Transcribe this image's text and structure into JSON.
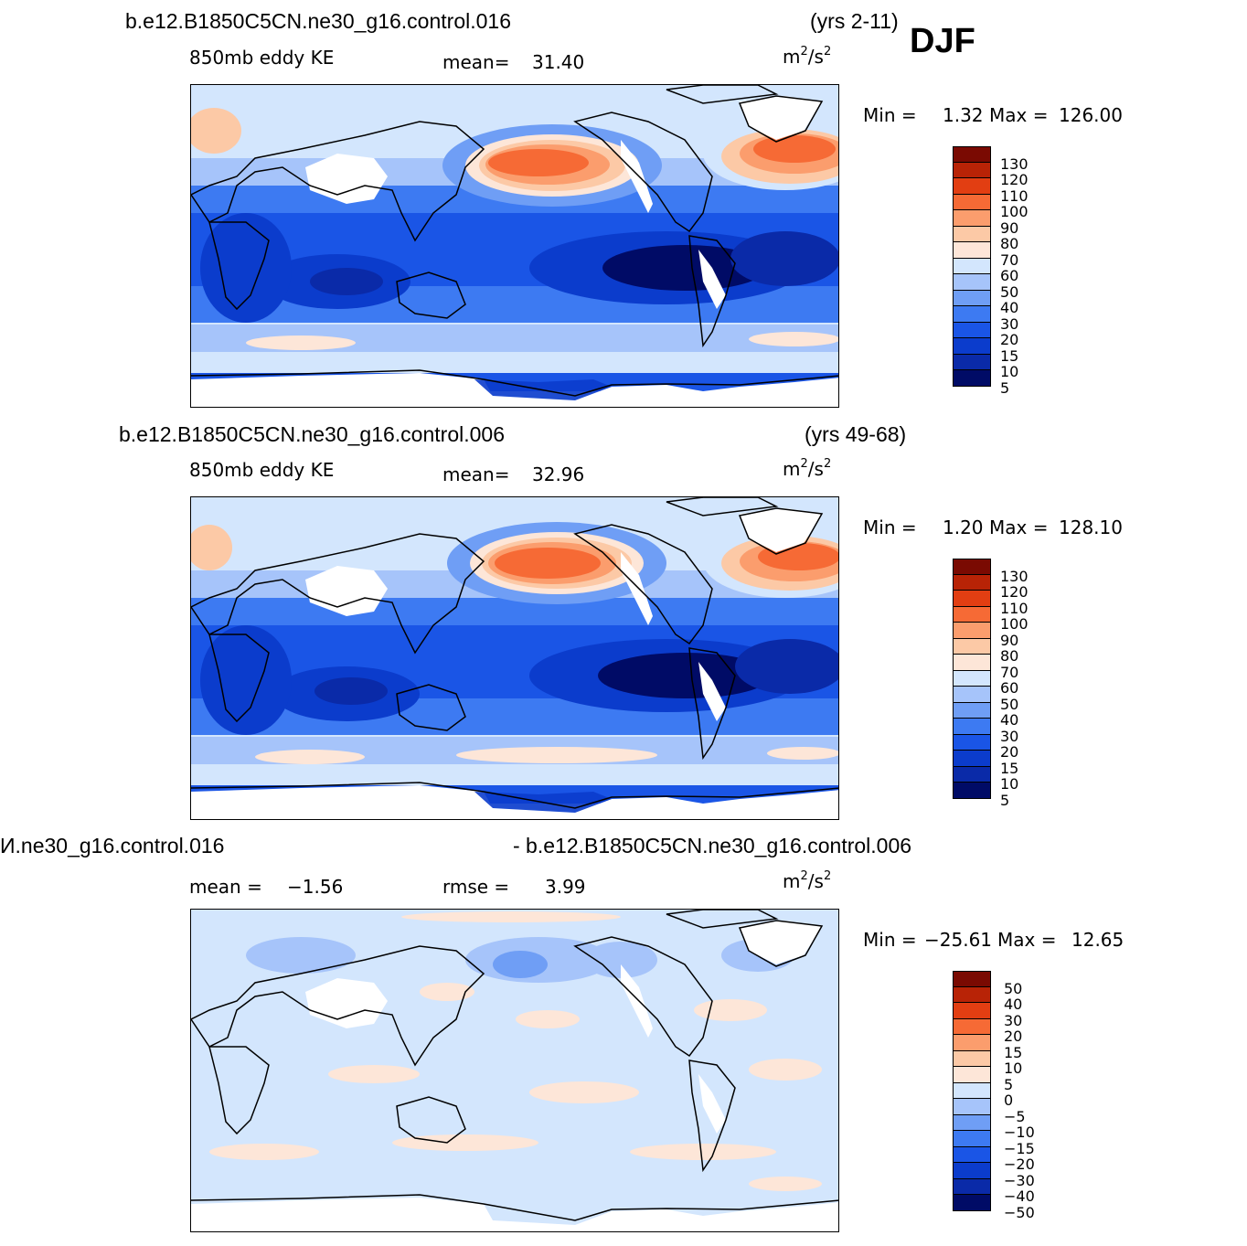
{
  "season": "DJF",
  "units_base": "m",
  "units_exp1": "2",
  "units_sep": "/s",
  "units_exp2": "2",
  "colors": {
    "scale": [
      "#000b66",
      "#0a2aa8",
      "#0b3ccc",
      "#1a55e6",
      "#3d7af2",
      "#6f9ef5",
      "#a6c4fa",
      "#d3e6fd",
      "#fde6d8",
      "#fcc9a6",
      "#fb9d6d",
      "#f66a35",
      "#e23e12",
      "#b82306",
      "#7a0a02"
    ],
    "land_outline": "#000000",
    "missing": "#ffffff"
  },
  "chart_data": [
    {
      "type": "heatmap",
      "case": "b.e12.B1850C5CN.ne30_g16.control.016",
      "years": "(yrs 2-11)",
      "variable": "850mb  eddy  KE",
      "stat1_label": "mean=",
      "stat1_value": "31.40",
      "min_label": "Min  =",
      "min_value": "1.32",
      "max_label": "Max  =",
      "max_value": "126.00",
      "levels": [
        "130",
        "120",
        "110",
        "100",
        "90",
        "80",
        "70",
        "60",
        "50",
        "40",
        "30",
        "20",
        "15",
        "10",
        "5"
      ]
    },
    {
      "type": "heatmap",
      "case": "b.e12.B1850C5CN.ne30_g16.control.006",
      "years": "(yrs 49-68)",
      "variable": "850mb  eddy  KE",
      "stat1_label": "mean=",
      "stat1_value": "32.96",
      "min_label": "Min  =",
      "min_value": "1.20",
      "max_label": "Max  =",
      "max_value": "128.10",
      "levels": [
        "130",
        "120",
        "110",
        "100",
        "90",
        "80",
        "70",
        "60",
        "50",
        "40",
        "30",
        "20",
        "15",
        "10",
        "5"
      ]
    },
    {
      "type": "heatmap",
      "case_left": "И.ne30_g16.control.016",
      "case_right": "- b.e12.B1850C5CN.ne30_g16.control.006",
      "stat1_label": "mean  =",
      "stat1_value": "−1.56",
      "stat2_label": "rmse  =",
      "stat2_value": "3.99",
      "min_label": "Min  =",
      "min_value": "−25.61",
      "max_label": "Max  =",
      "max_value": "12.65",
      "levels": [
        "50",
        "40",
        "30",
        "20",
        "15",
        "10",
        "5",
        "0",
        "−5",
        "−10",
        "−15",
        "−20",
        "−30",
        "−40",
        "−50"
      ]
    }
  ]
}
